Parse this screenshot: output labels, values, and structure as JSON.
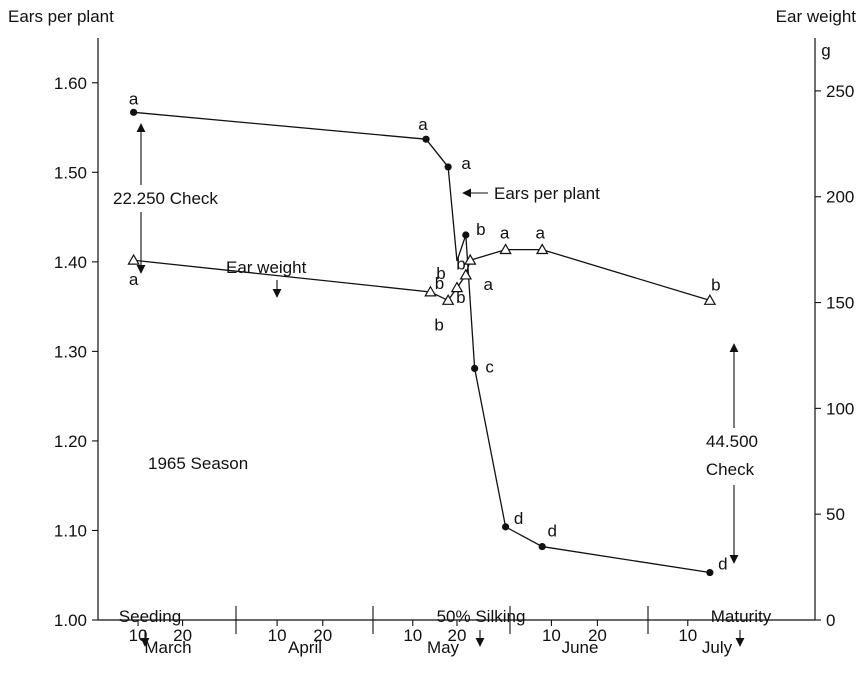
{
  "chart_data": {
    "type": "line",
    "ylabel_left": "Ears per plant",
    "ylabel_right": "Ear weight",
    "ylabel_right_unit": "g",
    "ylim_left": [
      1.0,
      1.65
    ],
    "ylim_right": [
      0,
      275
    ],
    "yticks_left": [
      "1.00",
      "1.10",
      "1.20",
      "1.30",
      "1.40",
      "1.50",
      "1.60"
    ],
    "yticks_right": [
      "0",
      "50",
      "100",
      "150",
      "200",
      "250"
    ],
    "x_day_ticks": [
      "10",
      "20",
      "10",
      "20",
      "10",
      "20",
      "10",
      "20",
      "10"
    ],
    "x_months": [
      "March",
      "April",
      "May",
      "June",
      "July"
    ],
    "series": [
      {
        "name": "Ears per plant",
        "axis": "left",
        "marker": "dot",
        "points": [
          {
            "x": "Mar 9",
            "y": 1.567,
            "label": "a"
          },
          {
            "x": "May 13",
            "y": 1.537,
            "label": "a"
          },
          {
            "x": "May 18",
            "y": 1.506,
            "label": "a"
          },
          {
            "x": "May 20",
            "y": 1.401,
            "label": "b"
          },
          {
            "x": "May 22",
            "y": 1.43,
            "label": "b"
          },
          {
            "x": "May 24",
            "y": 1.281,
            "label": "c"
          },
          {
            "x": "May 31",
            "y": 1.104,
            "label": "d"
          },
          {
            "x": "Jun 8",
            "y": 1.082,
            "label": "d"
          },
          {
            "x": "Jul 15",
            "y": 1.053,
            "label": "d"
          }
        ]
      },
      {
        "name": "Ear weight",
        "axis": "right",
        "marker": "triangle",
        "points": [
          {
            "x": "Mar 9",
            "y": 170,
            "label": "a"
          },
          {
            "x": "May 14",
            "y": 155,
            "label": "b"
          },
          {
            "x": "May 18",
            "y": 151,
            "label": "b"
          },
          {
            "x": "May 20",
            "y": 157,
            "label": "b"
          },
          {
            "x": "May 22",
            "y": 163,
            "label": "b"
          },
          {
            "x": "May 23",
            "y": 170,
            "label": "a"
          },
          {
            "x": "May 31",
            "y": 175,
            "label": "a"
          },
          {
            "x": "Jun 8",
            "y": 175,
            "label": "a"
          },
          {
            "x": "Jul 15",
            "y": 151,
            "label": "b"
          }
        ]
      }
    ],
    "annotations": [
      {
        "text": "22.250 Check"
      },
      {
        "text": "44.500"
      },
      {
        "text": "Check"
      },
      {
        "text": "Ears per plant"
      },
      {
        "text": "Ear weight"
      },
      {
        "text": "1965 Season"
      },
      {
        "text": "Seeding"
      },
      {
        "text": "50% Silking"
      },
      {
        "text": "Maturity"
      }
    ]
  }
}
